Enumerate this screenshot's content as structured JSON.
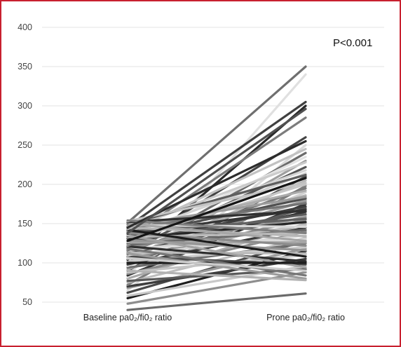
{
  "chart_data": {
    "type": "line",
    "title": "",
    "xlabel": "",
    "ylabel": "",
    "categories": [
      "Baseline pa0₂/fi0₂ ratio",
      "Prone pa0₂/fi0₂ ratio"
    ],
    "yticks": [
      50,
      100,
      150,
      200,
      250,
      300,
      350,
      400
    ],
    "ylim": [
      40,
      400
    ],
    "grid": true,
    "annotation": "P<0.001",
    "series": [
      {
        "values": [
          40,
          61
        ],
        "color": "#6a6a6a"
      },
      {
        "values": [
          48,
          88
        ],
        "color": "#8e8e8e"
      },
      {
        "values": [
          55,
          115
        ],
        "color": "#1f1f1f"
      },
      {
        "values": [
          58,
          96
        ],
        "color": "#c8c8c8"
      },
      {
        "values": [
          62,
          128
        ],
        "color": "#4a4a4a"
      },
      {
        "values": [
          65,
          250
        ],
        "color": "#d9d9d9"
      },
      {
        "values": [
          68,
          118
        ],
        "color": "#9a9a9a"
      },
      {
        "values": [
          70,
          105
        ],
        "color": "#3c3c3c"
      },
      {
        "values": [
          72,
          198
        ],
        "color": "#7e7e7e"
      },
      {
        "values": [
          75,
          132
        ],
        "color": "#bdbdbd"
      },
      {
        "values": [
          77,
          92
        ],
        "color": "#595959"
      },
      {
        "values": [
          80,
          150
        ],
        "color": "#a8a8a8"
      },
      {
        "values": [
          82,
          340
        ],
        "color": "#e0e0e0"
      },
      {
        "values": [
          84,
          175
        ],
        "color": "#2e2e2e"
      },
      {
        "values": [
          86,
          140
        ],
        "color": "#8a8a8a"
      },
      {
        "values": [
          88,
          110
        ],
        "color": "#c4c4c4"
      },
      {
        "values": [
          90,
          210
        ],
        "color": "#4f4f4f"
      },
      {
        "values": [
          92,
          160
        ],
        "color": "#b0b0b0"
      },
      {
        "values": [
          94,
          125
        ],
        "color": "#6e6e6e"
      },
      {
        "values": [
          96,
          190
        ],
        "color": "#d0d0d0"
      },
      {
        "values": [
          98,
          145
        ],
        "color": "#3a3a3a"
      },
      {
        "values": [
          100,
          230
        ],
        "color": "#9e9e9e"
      },
      {
        "values": [
          101,
          170
        ],
        "color": "#5c5c5c"
      },
      {
        "values": [
          102,
          120
        ],
        "color": "#cacaca"
      },
      {
        "values": [
          104,
          300
        ],
        "color": "#2a2a2a"
      },
      {
        "values": [
          105,
          155
        ],
        "color": "#8c8c8c"
      },
      {
        "values": [
          106,
          205
        ],
        "color": "#b8b8b8"
      },
      {
        "values": [
          108,
          98
        ],
        "color": "#4c4c4c"
      },
      {
        "values": [
          109,
          180
        ],
        "color": "#a0a0a0"
      },
      {
        "values": [
          110,
          135
        ],
        "color": "#d6d6d6"
      },
      {
        "values": [
          111,
          240
        ],
        "color": "#6c6c6c"
      },
      {
        "values": [
          112,
          165
        ],
        "color": "#333333"
      },
      {
        "values": [
          113,
          112
        ],
        "color": "#bababa"
      },
      {
        "values": [
          114,
          195
        ],
        "color": "#7a7a7a"
      },
      {
        "values": [
          115,
          148
        ],
        "color": "#c0c0c0"
      },
      {
        "values": [
          116,
          222
        ],
        "color": "#555555"
      },
      {
        "values": [
          117,
          178
        ],
        "color": "#999999"
      },
      {
        "values": [
          118,
          130
        ],
        "color": "#dcdcdc"
      },
      {
        "values": [
          119,
          260
        ],
        "color": "#444444"
      },
      {
        "values": [
          120,
          158
        ],
        "color": "#8f8f8f"
      },
      {
        "values": [
          121,
          102
        ],
        "color": "#2f2f2f"
      },
      {
        "values": [
          122,
          186
        ],
        "color": "#b4b4b4"
      },
      {
        "values": [
          123,
          142
        ],
        "color": "#686868"
      },
      {
        "values": [
          124,
          214
        ],
        "color": "#cfcfcf"
      },
      {
        "values": [
          125,
          172
        ],
        "color": "#3e3e3e"
      },
      {
        "values": [
          126,
          126
        ],
        "color": "#a4a4a4"
      },
      {
        "values": [
          127,
          235
        ],
        "color": "#e2e2e2"
      },
      {
        "values": [
          128,
          162
        ],
        "color": "#5a5a5a"
      },
      {
        "values": [
          129,
          116
        ],
        "color": "#969696"
      },
      {
        "values": [
          130,
          200
        ],
        "color": "#c6c6c6"
      },
      {
        "values": [
          131,
          152
        ],
        "color": "#262626"
      },
      {
        "values": [
          132,
          285
        ],
        "color": "#7c7c7c"
      },
      {
        "values": [
          133,
          138
        ],
        "color": "#bcbcbc"
      },
      {
        "values": [
          134,
          182
        ],
        "color": "#505050"
      },
      {
        "values": [
          135,
          94
        ],
        "color": "#a2a2a2"
      },
      {
        "values": [
          136,
          218
        ],
        "color": "#d4d4d4"
      },
      {
        "values": [
          137,
          168
        ],
        "color": "#363636"
      },
      {
        "values": [
          138,
          122
        ],
        "color": "#8b8b8b"
      },
      {
        "values": [
          139,
          245
        ],
        "color": "#c2c2c2"
      },
      {
        "values": [
          140,
          156
        ],
        "color": "#616161"
      },
      {
        "values": [
          141,
          192
        ],
        "color": "#acacac"
      },
      {
        "values": [
          142,
          108
        ],
        "color": "#1c1c1c"
      },
      {
        "values": [
          143,
          228
        ],
        "color": "#cbcbcb"
      },
      {
        "values": [
          144,
          176
        ],
        "color": "#737373"
      },
      {
        "values": [
          145,
          134
        ],
        "color": "#b6b6b6"
      },
      {
        "values": [
          146,
          305
        ],
        "color": "#404040"
      },
      {
        "values": [
          147,
          184
        ],
        "color": "#9c9c9c"
      },
      {
        "values": [
          148,
          146
        ],
        "color": "#d8d8d8"
      },
      {
        "values": [
          149,
          212
        ],
        "color": "#5e5e5e"
      },
      {
        "values": [
          150,
          128
        ],
        "color": "#a6a6a6"
      },
      {
        "values": [
          151,
          350
        ],
        "color": "#6f6f6f"
      },
      {
        "values": [
          152,
          166
        ],
        "color": "#303030"
      },
      {
        "values": [
          153,
          202
        ],
        "color": "#c3c3c3"
      },
      {
        "values": [
          154,
          138
        ],
        "color": "#7f7f7f"
      },
      {
        "values": [
          145,
          255
        ],
        "color": "#2c2c2c"
      },
      {
        "values": [
          138,
          296
        ],
        "color": "#505050"
      },
      {
        "values": [
          128,
          208
        ],
        "color": "#151515"
      },
      {
        "values": [
          112,
          80
        ],
        "color": "#9b9b9b"
      },
      {
        "values": [
          100,
          100
        ],
        "color": "#1e1e1e"
      },
      {
        "values": [
          90,
          78
        ],
        "color": "#b2b2b2"
      },
      {
        "values": [
          118,
          84
        ],
        "color": "#777777"
      },
      {
        "values": [
          106,
          90
        ],
        "color": "#cccccc"
      }
    ]
  }
}
